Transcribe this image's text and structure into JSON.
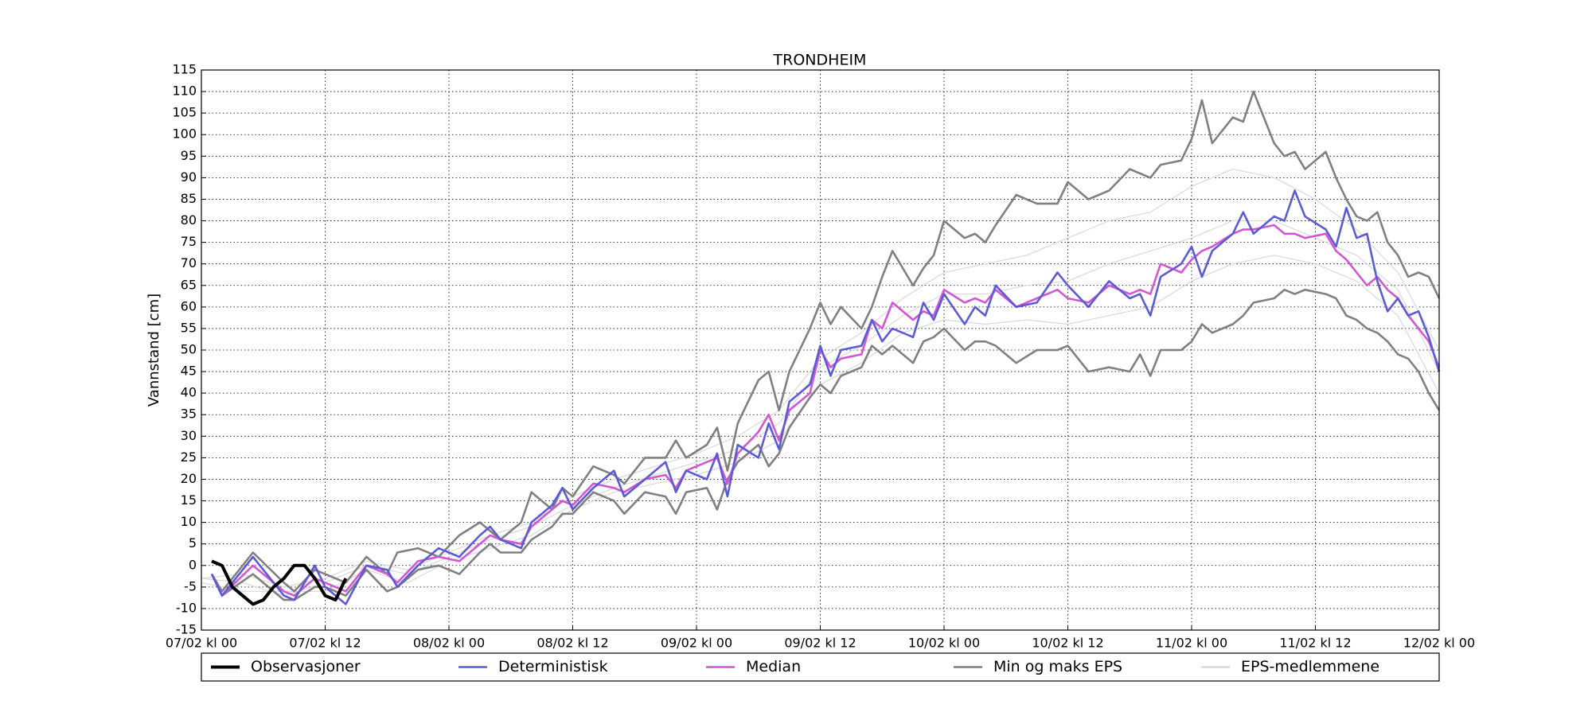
{
  "chart_data": {
    "type": "line",
    "title": "TRONDHEIM",
    "y_label": "Vannstand [cm]",
    "xlim": [
      0,
      120
    ],
    "ylim": [
      -15,
      115
    ],
    "grid": true,
    "legend": "bottom",
    "xticks": [
      {
        "value": 0,
        "label": "07/02 kl 00"
      },
      {
        "value": 12,
        "label": "07/02 kl 12"
      },
      {
        "value": 24,
        "label": "08/02 kl 00"
      },
      {
        "value": 36,
        "label": "08/02 kl 12"
      },
      {
        "value": 48,
        "label": "09/02 kl 00"
      },
      {
        "value": 60,
        "label": "09/02 kl 12"
      },
      {
        "value": 72,
        "label": "10/02 kl 00"
      },
      {
        "value": 84,
        "label": "10/02 kl 12"
      },
      {
        "value": 96,
        "label": "11/02 kl 00"
      },
      {
        "value": 108,
        "label": "11/02 kl 12"
      },
      {
        "value": 120,
        "label": "12/02 kl 00"
      }
    ],
    "yticks": [
      -15,
      -10,
      -5,
      0,
      5,
      10,
      15,
      20,
      25,
      30,
      35,
      40,
      45,
      50,
      55,
      60,
      65,
      70,
      75,
      80,
      85,
      90,
      95,
      100,
      105,
      110,
      115
    ],
    "x": [
      1,
      2,
      5,
      8,
      9,
      11,
      12,
      14,
      16,
      18,
      19,
      21,
      23,
      25,
      27,
      28,
      29,
      31,
      32,
      34,
      35,
      36,
      38,
      40,
      41,
      43,
      45,
      46,
      47,
      49,
      50,
      51,
      52,
      54,
      55,
      56,
      57,
      59,
      60,
      61,
      62,
      64,
      65,
      66,
      67,
      69,
      70,
      71,
      72,
      74,
      75,
      76,
      77,
      79,
      81,
      83,
      84,
      86,
      88,
      90,
      91,
      92,
      93,
      95,
      96,
      97,
      98,
      100,
      101,
      102,
      104,
      105,
      106,
      107,
      109,
      110,
      111,
      112,
      113,
      114,
      115,
      116,
      117,
      118,
      119,
      120
    ],
    "series": [
      {
        "name": "Observasjoner",
        "color": "#000000",
        "x": [
          1,
          2,
          3,
          4,
          5,
          6,
          7,
          8,
          9,
          10,
          11,
          12,
          13,
          14
        ],
        "values": [
          1,
          0,
          -5,
          -7,
          -9,
          -8,
          -5,
          -3,
          0,
          0,
          -3,
          -7,
          -8,
          -3
        ]
      },
      {
        "name": "Deterministisk",
        "color": "#5b5bd6",
        "values": [
          -2,
          -7,
          2,
          -7,
          -8,
          0,
          -5,
          -9,
          0,
          -1,
          -5,
          0,
          4,
          2,
          7,
          9,
          6,
          4,
          10,
          14,
          18,
          13,
          18,
          22,
          16,
          20,
          24,
          17,
          22,
          20,
          26,
          16,
          28,
          25,
          33,
          27,
          38,
          42,
          51,
          44,
          50,
          51,
          57,
          52,
          55,
          53,
          61,
          57,
          63,
          56,
          60,
          58,
          65,
          60,
          61,
          68,
          65,
          60,
          66,
          62,
          63,
          58,
          67,
          70,
          74,
          67,
          73,
          77,
          82,
          77,
          81,
          80,
          87,
          81,
          78,
          74,
          83,
          76,
          77,
          66,
          59,
          62,
          58,
          59,
          53,
          45
        ]
      },
      {
        "name": "Median",
        "color": "#d257d2",
        "values": [
          -2,
          -7,
          0,
          -6,
          -7,
          -3,
          -4,
          -6,
          0,
          -2,
          -4,
          1,
          2,
          1,
          5,
          7,
          6,
          5,
          9,
          13,
          15,
          14,
          19,
          18,
          17,
          20,
          21,
          18,
          22,
          24,
          25,
          19,
          26,
          31,
          35,
          29,
          36,
          40,
          50,
          46,
          48,
          49,
          57,
          55,
          61,
          57,
          59,
          58,
          64,
          61,
          62,
          61,
          64,
          60,
          62,
          64,
          62,
          61,
          65,
          63,
          64,
          63,
          70,
          68,
          71,
          73,
          74,
          77,
          78,
          78,
          79,
          77,
          77,
          76,
          77,
          73,
          71,
          68,
          65,
          67,
          64,
          62,
          58,
          55,
          52,
          46
        ]
      },
      {
        "name": "Min og maks EPS",
        "color": "#808080",
        "min": [
          -2,
          -7,
          -2,
          -8,
          -8,
          -5,
          -5,
          -7,
          -1,
          -6,
          -5,
          -1,
          0,
          -2,
          3,
          5,
          3,
          3,
          6,
          9,
          12,
          12,
          17,
          15,
          12,
          17,
          16,
          12,
          17,
          18,
          13,
          20,
          24,
          28,
          23,
          26,
          32,
          39,
          42,
          40,
          44,
          46,
          51,
          49,
          51,
          47,
          52,
          53,
          55,
          50,
          52,
          52,
          51,
          47,
          50,
          50,
          51,
          45,
          46,
          45,
          49,
          44,
          50,
          50,
          52,
          56,
          54,
          56,
          58,
          61,
          62,
          64,
          63,
          64,
          63,
          62,
          58,
          57,
          55,
          54,
          52,
          49,
          48,
          45,
          40,
          36
        ],
        "max": [
          -2,
          -6,
          3,
          -4,
          -6,
          -1,
          -2,
          -4,
          2,
          -2,
          3,
          4,
          2,
          7,
          10,
          8,
          6,
          10,
          17,
          13,
          18,
          16,
          23,
          21,
          19,
          25,
          25,
          29,
          25,
          28,
          32,
          22,
          33,
          43,
          45,
          36,
          45,
          55,
          61,
          56,
          60,
          55,
          60,
          67,
          73,
          65,
          69,
          72,
          80,
          76,
          77,
          75,
          79,
          86,
          84,
          84,
          89,
          85,
          87,
          92,
          91,
          90,
          93,
          94,
          99,
          108,
          98,
          104,
          103,
          110,
          98,
          95,
          96,
          92,
          96,
          90,
          85,
          81,
          80,
          82,
          75,
          72,
          67,
          68,
          67,
          62
        ]
      },
      {
        "name": "EPS-medlemmene",
        "color": "#d9d9d9",
        "x": [
          0,
          4,
          8,
          12,
          16,
          20,
          24,
          28,
          32,
          36,
          40,
          44,
          48,
          52,
          56,
          60,
          64,
          68,
          72,
          76,
          80,
          84,
          88,
          92,
          96,
          100,
          104,
          108,
          112,
          116,
          120
        ],
        "members": [
          [
            -3,
            -2,
            -5,
            -3,
            1,
            -1,
            3,
            7,
            10,
            16,
            20,
            23,
            26,
            30,
            36,
            48,
            54,
            62,
            68,
            70,
            72,
            76,
            80,
            82,
            88,
            92,
            90,
            85,
            78,
            68,
            50
          ],
          [
            -4,
            -6,
            -6,
            -6,
            -1,
            -4,
            1,
            4,
            7,
            13,
            17,
            19,
            21,
            24,
            29,
            42,
            47,
            54,
            57,
            56,
            57,
            56,
            58,
            60,
            66,
            70,
            72,
            70,
            66,
            58,
            40
          ],
          [
            -3,
            -4,
            -7,
            -4,
            0,
            -2,
            2,
            6,
            9,
            14,
            18,
            21,
            24,
            27,
            33,
            46,
            51,
            58,
            63,
            63,
            65,
            66,
            70,
            73,
            76,
            80,
            80,
            76,
            72,
            64,
            45
          ]
        ]
      }
    ]
  }
}
